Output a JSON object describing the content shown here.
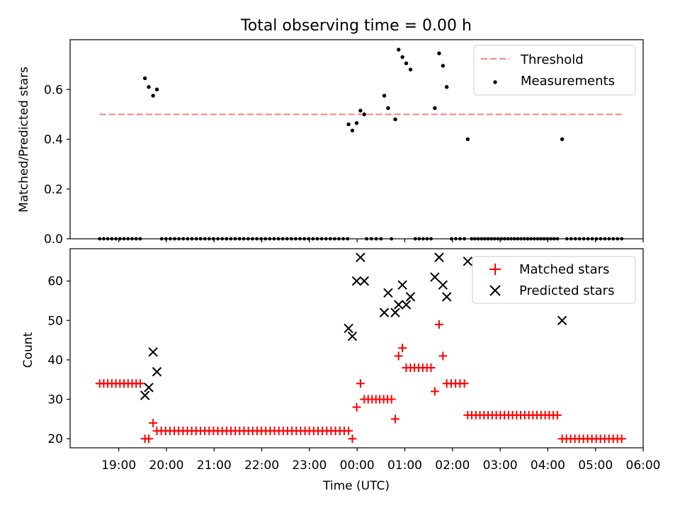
{
  "title": "Total observing time = 0.00 h",
  "colors": {
    "threshold": "#ff7f7f",
    "measurement": "#000000",
    "matched": "#ff0000",
    "predicted": "#000000"
  },
  "x_ticks": [
    {
      "t": 19,
      "label": "19:00"
    },
    {
      "t": 20,
      "label": "20:00"
    },
    {
      "t": 21,
      "label": "21:00"
    },
    {
      "t": 22,
      "label": "22:00"
    },
    {
      "t": 23,
      "label": "23:00"
    },
    {
      "t": 24,
      "label": "00:00"
    },
    {
      "t": 25,
      "label": "01:00"
    },
    {
      "t": 26,
      "label": "02:00"
    },
    {
      "t": 27,
      "label": "03:00"
    },
    {
      "t": 28,
      "label": "04:00"
    },
    {
      "t": 29,
      "label": "05:00"
    },
    {
      "t": 30,
      "label": "06:00"
    }
  ],
  "chart_data": [
    {
      "type": "scatter",
      "ylabel": "Matched/Predicted stars",
      "xlim": [
        17.98,
        30.0
      ],
      "ylim": [
        0.0,
        0.8
      ],
      "yticks": [
        "0.0",
        "0.2",
        "0.4",
        "0.6"
      ],
      "legend": {
        "placement": "top-right",
        "threshold_label": "Threshold",
        "measurements_label": "Measurements"
      },
      "threshold": {
        "value": 0.5,
        "x_range": [
          18.6,
          29.55
        ]
      },
      "measurements": {
        "x": [
          19.55,
          19.63,
          19.72,
          19.8,
          23.82,
          23.9,
          23.99,
          24.07,
          24.15,
          24.57,
          24.65,
          24.8,
          24.87,
          24.95,
          25.03,
          25.12,
          25.63,
          25.72,
          25.8,
          25.88,
          26.32,
          28.3
        ],
        "y": [
          0.645,
          0.61,
          0.575,
          0.6,
          0.46,
          0.435,
          0.465,
          0.515,
          0.5,
          0.575,
          0.525,
          0.48,
          0.76,
          0.73,
          0.705,
          0.68,
          0.525,
          0.745,
          0.695,
          0.61,
          0.4,
          0.4
        ],
        "zero_runs": [
          [
            18.6,
            19.45,
            11
          ],
          [
            19.9,
            23.8,
            44
          ],
          [
            24.2,
            24.5,
            4
          ],
          [
            24.72,
            24.72,
            1
          ],
          [
            25.22,
            25.55,
            5
          ],
          [
            25.98,
            26.25,
            4
          ],
          [
            26.4,
            28.2,
            27
          ],
          [
            28.4,
            29.55,
            14
          ]
        ]
      }
    },
    {
      "type": "scatter",
      "xlabel": "Time (UTC)",
      "ylabel": "Count",
      "xlim": [
        17.98,
        30.0
      ],
      "ylim": [
        17.7,
        68.2
      ],
      "yticks": [
        20,
        30,
        40,
        50,
        60
      ],
      "legend": {
        "placement": "top-right",
        "matched_label": "Matched stars",
        "predicted_label": "Predicted stars"
      },
      "matched_runs": [
        {
          "from": 18.6,
          "to": 19.45,
          "count": 11,
          "y": 34
        },
        {
          "from": 19.55,
          "to": 19.63,
          "count": 2,
          "y": 20
        },
        {
          "from": 19.72,
          "to": 19.72,
          "count": 1,
          "y": 24
        },
        {
          "from": 19.8,
          "to": 23.82,
          "count": 45,
          "y": 22
        },
        {
          "from": 23.9,
          "to": 23.9,
          "count": 1,
          "y": 20
        },
        {
          "from": 23.99,
          "to": 23.99,
          "count": 1,
          "y": 28
        },
        {
          "from": 24.07,
          "to": 24.07,
          "count": 1,
          "y": 34
        },
        {
          "from": 24.15,
          "to": 24.72,
          "count": 8,
          "y": 30
        },
        {
          "from": 24.8,
          "to": 24.8,
          "count": 1,
          "y": 25
        },
        {
          "from": 24.87,
          "to": 24.87,
          "count": 1,
          "y": 41
        },
        {
          "from": 24.95,
          "to": 24.95,
          "count": 1,
          "y": 43
        },
        {
          "from": 25.03,
          "to": 25.55,
          "count": 7,
          "y": 38
        },
        {
          "from": 25.63,
          "to": 25.63,
          "count": 1,
          "y": 32
        },
        {
          "from": 25.72,
          "to": 25.72,
          "count": 1,
          "y": 49
        },
        {
          "from": 25.8,
          "to": 25.8,
          "count": 1,
          "y": 41
        },
        {
          "from": 25.88,
          "to": 26.25,
          "count": 5,
          "y": 34
        },
        {
          "from": 26.32,
          "to": 28.2,
          "count": 23,
          "y": 26
        },
        {
          "from": 28.3,
          "to": 29.55,
          "count": 15,
          "y": 20
        }
      ],
      "predicted": {
        "x": [
          19.55,
          19.63,
          19.72,
          19.8,
          23.82,
          23.9,
          23.99,
          24.07,
          24.15,
          24.57,
          24.65,
          24.8,
          24.87,
          24.95,
          25.03,
          25.12,
          25.63,
          25.72,
          25.8,
          25.88,
          26.32,
          28.3
        ],
        "y": [
          31,
          33,
          42,
          37,
          48,
          46,
          60,
          66,
          60,
          52,
          57,
          52,
          54,
          59,
          54,
          56,
          61,
          66,
          59,
          56,
          65,
          50
        ]
      }
    }
  ]
}
